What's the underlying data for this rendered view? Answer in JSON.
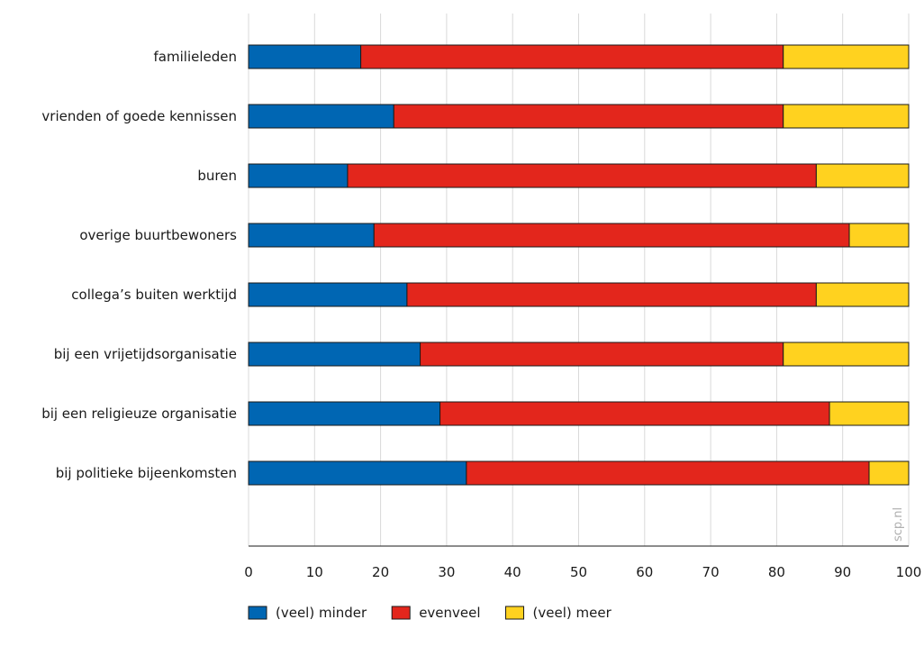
{
  "chart_data": {
    "type": "bar",
    "orientation": "horizontal",
    "stacked": true,
    "categories": [
      "familieleden",
      "vrienden of goede kennissen",
      "buren",
      "overige buurtbewoners",
      "collega’s buiten werktijd",
      "bij een vrijetijdsorganisatie",
      "bij een religieuze organisatie",
      "bij politieke bijeenkomsten"
    ],
    "series": [
      {
        "name": "(veel) minder",
        "color": "#0066b3",
        "values": [
          17,
          22,
          15,
          19,
          24,
          26,
          29,
          33
        ]
      },
      {
        "name": "evenveel",
        "color": "#e3261c",
        "values": [
          64,
          59,
          71,
          72,
          62,
          55,
          59,
          61
        ]
      },
      {
        "name": "(veel) meer",
        "color": "#ffd21f",
        "values": [
          19,
          19,
          14,
          9,
          14,
          19,
          12,
          6
        ]
      }
    ],
    "xlim": [
      0,
      100
    ],
    "xticks": [
      0,
      10,
      20,
      30,
      40,
      50,
      60,
      70,
      80,
      90,
      100
    ],
    "grid": "vertical",
    "legend_position": "bottom",
    "title": "",
    "xlabel": "",
    "ylabel": "",
    "watermark": "scp.nl"
  }
}
